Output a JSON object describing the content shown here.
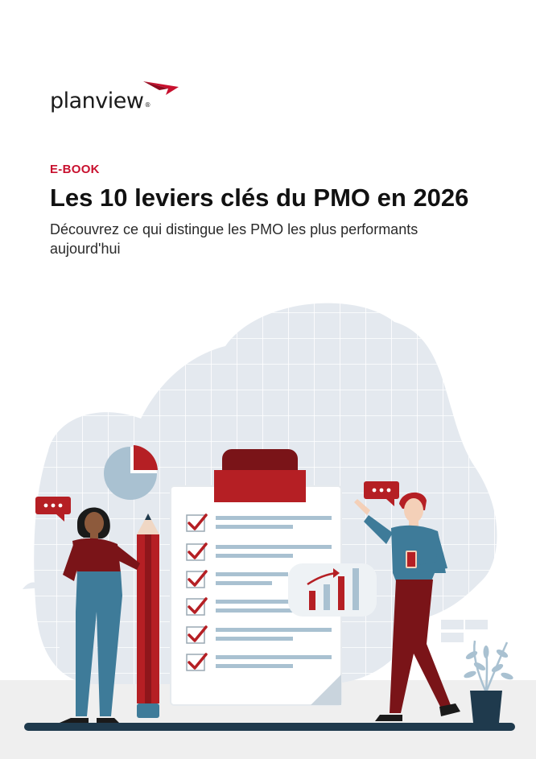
{
  "brand": {
    "name": "planview",
    "registered_mark": "®",
    "accent_color": "#c8102e"
  },
  "cover": {
    "eyebrow": "E-BOOK",
    "title": "Les 10 leviers clés du PMO en 2026",
    "subtitle": "Découvrez ce qui distingue les PMO les plus performants aujourd'hui"
  },
  "illustration": {
    "checklist_items": 6,
    "colors": {
      "grid_blob": "#e4e9ef",
      "dark_red": "#7a1418",
      "red": "#b51f24",
      "navy": "#1f3a4d",
      "teal_blue": "#3e7b99",
      "light_blue": "#a9c1d1"
    }
  }
}
